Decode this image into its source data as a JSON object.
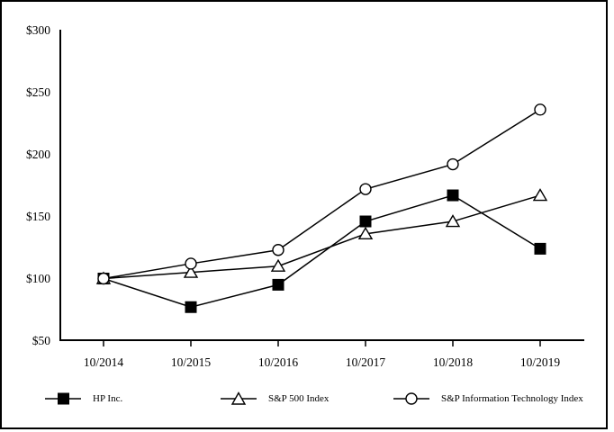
{
  "chart_data": {
    "type": "line",
    "title": "",
    "xlabel": "",
    "ylabel": "",
    "x_categories": [
      "10/2014",
      "10/2015",
      "10/2016",
      "10/2017",
      "10/2018",
      "10/2019"
    ],
    "series": [
      {
        "name": "HP Inc.",
        "marker": "filled-square",
        "color": "#000000",
        "values": [
          100,
          77,
          95,
          146,
          167,
          124
        ]
      },
      {
        "name": "S&P 500 Index",
        "marker": "open-triangle",
        "color": "#000000",
        "values": [
          100,
          105,
          110,
          136,
          146,
          167
        ]
      },
      {
        "name": "S&P Information Technology Index",
        "marker": "open-circle",
        "color": "#000000",
        "values": [
          100,
          112,
          123,
          172,
          192,
          236
        ]
      }
    ],
    "ylim": [
      50,
      300
    ],
    "ytick_values": [
      50,
      100,
      150,
      200,
      250,
      300
    ],
    "ytick_labels": [
      "$50",
      "$100",
      "$150",
      "$200",
      "$250",
      "$300"
    ],
    "grid": false,
    "legend_position": "bottom",
    "background": "#ffffff",
    "axis_color": "#000000"
  }
}
